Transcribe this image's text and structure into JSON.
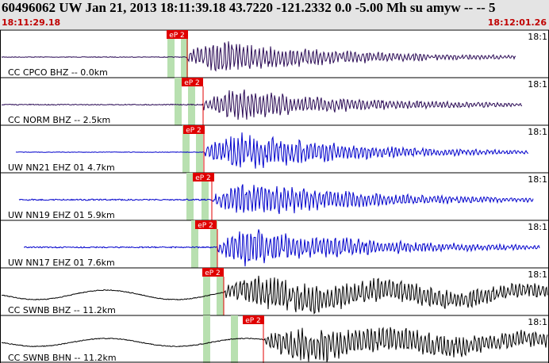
{
  "header": {
    "title": "60496062 UW Jan 21, 2013 18:11:39.18   43.7220 -121.2332  0.0 -5.00 Mh su amyw -- --    5",
    "start_time": "18:11:29.18",
    "end_time": "18:12:01.26"
  },
  "traces": [
    {
      "label": "CC CPCO BHZ -- 0.0km",
      "pick": "eP 2",
      "time_label": "18:1"
    },
    {
      "label": "CC NORM BHZ -- 2.5km",
      "pick": "eP 2",
      "time_label": "18:1"
    },
    {
      "label": "UW NN21 EHZ 01 4.7km",
      "pick": "eP 2",
      "time_label": "18:1"
    },
    {
      "label": "UW NN19 EHZ 01 5.9km",
      "pick": "eP 2",
      "time_label": "18:1"
    },
    {
      "label": "UW NN17 EHZ 01 7.6km",
      "pick": "eP 2",
      "time_label": "18:1"
    },
    {
      "label": "CC SWNB BHZ -- 11.2km",
      "pick": "eP 2",
      "time_label": "18:1"
    },
    {
      "label": "CC SWNB BHN -- 11.2km",
      "pick": "eP 2",
      "time_label": "18:1"
    }
  ]
}
